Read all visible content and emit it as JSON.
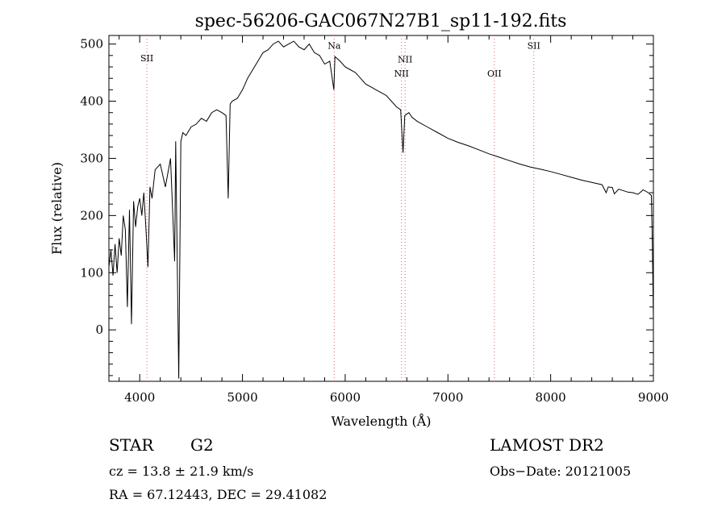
{
  "chart_data": {
    "type": "line",
    "title": "spec-56206-GAC067N27B1_sp11-192.fits",
    "xlabel": "Wavelength (Å)",
    "ylabel": "Flux (relative)",
    "xlim": [
      3700,
      9000
    ],
    "ylim": [
      -90,
      515
    ],
    "xticks": [
      4000,
      5000,
      6000,
      7000,
      8000,
      9000
    ],
    "yticks": [
      0,
      100,
      200,
      300,
      400,
      500
    ],
    "grid": false,
    "line_color": "#000000",
    "marker_color": "#e06060",
    "series": [
      {
        "x": [
          3700,
          3720,
          3740,
          3760,
          3780,
          3800,
          3820,
          3840,
          3860,
          3880,
          3900,
          3920,
          3940,
          3960,
          3980,
          4000,
          4020,
          4040,
          4060,
          4080,
          4100,
          4120,
          4150,
          4200,
          4250,
          4300,
          4340,
          4350,
          4380,
          4400,
          4420,
          4450,
          4500,
          4550,
          4600,
          4650,
          4700,
          4750,
          4800,
          4840,
          4861,
          4880,
          4900,
          4950,
          5000,
          5050,
          5100,
          5150,
          5200,
          5250,
          5300,
          5350,
          5400,
          5450,
          5500,
          5550,
          5600,
          5650,
          5700,
          5750,
          5800,
          5850,
          5890,
          5900,
          5950,
          6000,
          6050,
          6100,
          6150,
          6200,
          6250,
          6300,
          6350,
          6400,
          6450,
          6500,
          6540,
          6563,
          6580,
          6620,
          6650,
          6700,
          6800,
          6900,
          7000,
          7100,
          7200,
          7300,
          7400,
          7500,
          7600,
          7700,
          7800,
          7900,
          8000,
          8100,
          8200,
          8300,
          8400,
          8500,
          8540,
          8560,
          8600,
          8620,
          8662,
          8700,
          8750,
          8800,
          8850,
          8900,
          8950,
          8980,
          8990,
          9000
        ],
        "y": [
          110,
          140,
          95,
          150,
          100,
          160,
          130,
          200,
          175,
          40,
          210,
          10,
          225,
          180,
          215,
          230,
          200,
          240,
          180,
          110,
          250,
          230,
          280,
          290,
          250,
          300,
          120,
          330,
          -85,
          330,
          345,
          340,
          355,
          360,
          370,
          365,
          380,
          385,
          380,
          375,
          230,
          395,
          400,
          405,
          420,
          440,
          455,
          470,
          485,
          490,
          500,
          505,
          495,
          500,
          505,
          495,
          490,
          500,
          485,
          480,
          465,
          470,
          420,
          478,
          470,
          460,
          455,
          450,
          440,
          430,
          425,
          420,
          415,
          410,
          400,
          390,
          385,
          310,
          375,
          380,
          372,
          365,
          355,
          345,
          335,
          328,
          322,
          315,
          308,
          302,
          296,
          290,
          285,
          281,
          277,
          272,
          267,
          262,
          258,
          254,
          240,
          250,
          249,
          238,
          246,
          244,
          241,
          240,
          237,
          245,
          240,
          235,
          150,
          20
        ]
      }
    ],
    "annotations": [
      {
        "label": "SII",
        "x": 4070,
        "y": 470
      },
      {
        "label": "Na",
        "x": 5893,
        "y": 492
      },
      {
        "label": "NII",
        "x": 6583,
        "y": 468
      },
      {
        "label": "NII",
        "x": 6548,
        "y": 443
      },
      {
        "label": "OII",
        "x": 7452,
        "y": 443
      },
      {
        "label": "SII",
        "x": 7836,
        "y": 492
      }
    ]
  },
  "footer": {
    "object_class": "STAR",
    "subclass": "G2",
    "survey": "LAMOST DR2",
    "redshift_text": "cz = 13.8 ± 21.9 km/s",
    "obs_date_text": "Obs−Date: 20121005",
    "coords_text": "RA =  67.12443, DEC =  29.41082"
  }
}
